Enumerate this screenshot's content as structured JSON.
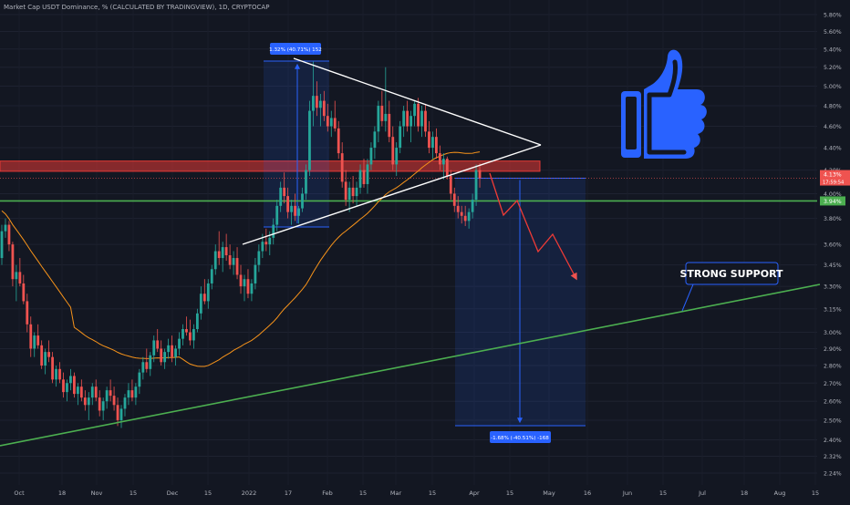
{
  "header": {
    "title": "Market Cap USDT Dominance, % (CALCULATED BY TRADINGVIEW), 1D, CRYPTOCAP"
  },
  "colors": {
    "background": "#131722",
    "up": "#26a69a",
    "down": "#ef5350",
    "ma": "#f7931a",
    "support": "#4caf50",
    "resistance": "#e53935",
    "thumb": "#2962ff",
    "measure": "#2962ff"
  },
  "chart_data": {
    "type": "candlestick",
    "y_scale": "log",
    "ylim": [
      2.2,
      5.95
    ],
    "y_ticks": [
      "5.80%",
      "5.60%",
      "5.40%",
      "5.20%",
      "5.00%",
      "4.80%",
      "4.60%",
      "4.40%",
      "4.20%",
      "4.00%",
      "3.80%",
      "3.60%",
      "3.45%",
      "3.30%",
      "3.15%",
      "3.00%",
      "2.90%",
      "2.80%",
      "2.70%",
      "2.60%",
      "2.50%",
      "2.40%",
      "2.32%",
      "2.24%"
    ],
    "x_ticks": [
      "Oct",
      "18",
      "Nov",
      "15",
      "Dec",
      "15",
      "2022",
      "17",
      "Feb",
      "15",
      "Mar",
      "15",
      "Apr",
      "15",
      "May",
      "16",
      "Jun",
      "15",
      "Jul",
      "18",
      "Aug",
      "15"
    ],
    "price_labels": {
      "current": "4.13%",
      "countdown": "17:59:54",
      "support_level": "3.94%"
    },
    "levels": {
      "resistance_zone": [
        4.19,
        4.28
      ],
      "horizontal_support": 3.94
    },
    "measure_up_label": "1.32% (40.71%) 152",
    "measure_down_label": "-1.68% (-40.51%) -168",
    "annotation": "STRONG SUPPORT",
    "series": [
      {
        "kind": "ohlc",
        "values": [
          [
            3.5,
            3.75,
            3.45,
            3.7
          ],
          [
            3.7,
            3.8,
            3.65,
            3.75
          ],
          [
            3.75,
            3.78,
            3.55,
            3.6
          ],
          [
            3.6,
            3.62,
            3.3,
            3.35
          ],
          [
            3.35,
            3.45,
            3.2,
            3.4
          ],
          [
            3.4,
            3.5,
            3.3,
            3.32
          ],
          [
            3.32,
            3.38,
            3.18,
            3.2
          ],
          [
            3.2,
            3.25,
            3.0,
            3.05
          ],
          [
            3.05,
            3.1,
            2.85,
            2.9
          ],
          [
            2.9,
            3.0,
            2.85,
            2.98
          ],
          [
            2.98,
            3.05,
            2.9,
            2.92
          ],
          [
            2.92,
            2.95,
            2.78,
            2.8
          ],
          [
            2.8,
            2.9,
            2.75,
            2.88
          ],
          [
            2.88,
            2.95,
            2.82,
            2.85
          ],
          [
            2.85,
            2.88,
            2.7,
            2.72
          ],
          [
            2.72,
            2.8,
            2.68,
            2.78
          ],
          [
            2.78,
            2.82,
            2.7,
            2.72
          ],
          [
            2.72,
            2.76,
            2.62,
            2.65
          ],
          [
            2.65,
            2.72,
            2.6,
            2.7
          ],
          [
            2.7,
            2.78,
            2.66,
            2.74
          ],
          [
            2.74,
            2.76,
            2.62,
            2.64
          ],
          [
            2.64,
            2.7,
            2.58,
            2.68
          ],
          [
            2.68,
            2.72,
            2.6,
            2.62
          ],
          [
            2.62,
            2.66,
            2.55,
            2.58
          ],
          [
            2.58,
            2.65,
            2.5,
            2.62
          ],
          [
            2.62,
            2.7,
            2.58,
            2.68
          ],
          [
            2.68,
            2.72,
            2.6,
            2.62
          ],
          [
            2.62,
            2.66,
            2.52,
            2.55
          ],
          [
            2.55,
            2.62,
            2.5,
            2.6
          ],
          [
            2.6,
            2.68,
            2.56,
            2.66
          ],
          [
            2.66,
            2.72,
            2.6,
            2.63
          ],
          [
            2.63,
            2.68,
            2.55,
            2.58
          ],
          [
            2.58,
            2.62,
            2.47,
            2.5
          ],
          [
            2.5,
            2.58,
            2.46,
            2.56
          ],
          [
            2.56,
            2.64,
            2.52,
            2.62
          ],
          [
            2.62,
            2.7,
            2.58,
            2.66
          ],
          [
            2.66,
            2.72,
            2.6,
            2.62
          ],
          [
            2.62,
            2.7,
            2.58,
            2.68
          ],
          [
            2.68,
            2.78,
            2.64,
            2.76
          ],
          [
            2.76,
            2.85,
            2.72,
            2.82
          ],
          [
            2.82,
            2.9,
            2.76,
            2.78
          ],
          [
            2.78,
            2.88,
            2.74,
            2.86
          ],
          [
            2.86,
            2.98,
            2.82,
            2.95
          ],
          [
            2.95,
            3.02,
            2.88,
            2.9
          ],
          [
            2.9,
            2.95,
            2.8,
            2.82
          ],
          [
            2.82,
            2.9,
            2.78,
            2.88
          ],
          [
            2.88,
            2.96,
            2.84,
            2.92
          ],
          [
            2.92,
            2.98,
            2.82,
            2.85
          ],
          [
            2.85,
            2.92,
            2.8,
            2.9
          ],
          [
            2.9,
            3.0,
            2.86,
            2.96
          ],
          [
            2.96,
            3.05,
            2.92,
            3.02
          ],
          [
            3.02,
            3.1,
            2.98,
            3.0
          ],
          [
            3.0,
            3.08,
            2.92,
            2.95
          ],
          [
            2.95,
            3.05,
            2.9,
            3.02
          ],
          [
            3.02,
            3.15,
            3.0,
            3.12
          ],
          [
            3.12,
            3.3,
            3.08,
            3.25
          ],
          [
            3.25,
            3.35,
            3.18,
            3.2
          ],
          [
            3.2,
            3.35,
            3.15,
            3.32
          ],
          [
            3.32,
            3.45,
            3.28,
            3.42
          ],
          [
            3.42,
            3.6,
            3.38,
            3.55
          ],
          [
            3.55,
            3.7,
            3.45,
            3.5
          ],
          [
            3.5,
            3.62,
            3.4,
            3.58
          ],
          [
            3.58,
            3.68,
            3.48,
            3.52
          ],
          [
            3.52,
            3.6,
            3.42,
            3.45
          ],
          [
            3.45,
            3.55,
            3.38,
            3.5
          ],
          [
            3.5,
            3.58,
            3.35,
            3.38
          ],
          [
            3.38,
            3.45,
            3.25,
            3.3
          ],
          [
            3.3,
            3.38,
            3.2,
            3.35
          ],
          [
            3.35,
            3.42,
            3.22,
            3.25
          ],
          [
            3.25,
            3.35,
            3.2,
            3.32
          ],
          [
            3.32,
            3.5,
            3.28,
            3.45
          ],
          [
            3.45,
            3.6,
            3.4,
            3.55
          ],
          [
            3.55,
            3.68,
            3.5,
            3.62
          ],
          [
            3.62,
            3.72,
            3.55,
            3.6
          ],
          [
            3.6,
            3.7,
            3.52,
            3.65
          ],
          [
            3.65,
            3.8,
            3.6,
            3.75
          ],
          [
            3.75,
            3.95,
            3.7,
            3.9
          ],
          [
            3.9,
            4.1,
            3.85,
            4.05
          ],
          [
            4.05,
            4.18,
            3.92,
            3.98
          ],
          [
            3.98,
            4.05,
            3.8,
            3.85
          ],
          [
            3.85,
            3.95,
            3.75,
            3.9
          ],
          [
            3.9,
            4.0,
            3.78,
            3.82
          ],
          [
            3.82,
            3.9,
            3.76,
            3.88
          ],
          [
            3.88,
            4.05,
            3.85,
            4.0
          ],
          [
            4.0,
            4.25,
            3.95,
            4.2
          ],
          [
            4.2,
            4.85,
            4.15,
            4.75
          ],
          [
            4.75,
            5.26,
            4.6,
            4.9
          ],
          [
            4.9,
            5.05,
            4.7,
            4.78
          ],
          [
            4.78,
            4.92,
            4.6,
            4.85
          ],
          [
            4.85,
            4.95,
            4.65,
            4.7
          ],
          [
            4.7,
            4.82,
            4.55,
            4.6
          ],
          [
            4.6,
            4.75,
            4.5,
            4.68
          ],
          [
            4.68,
            4.85,
            4.55,
            4.58
          ],
          [
            4.58,
            4.65,
            4.3,
            4.35
          ],
          [
            4.35,
            4.45,
            4.05,
            4.1
          ],
          [
            4.1,
            4.2,
            3.9,
            3.95
          ],
          [
            3.95,
            4.1,
            3.85,
            4.05
          ],
          [
            4.05,
            4.15,
            3.92,
            3.98
          ],
          [
            3.98,
            4.1,
            3.9,
            4.05
          ],
          [
            4.05,
            4.25,
            4.0,
            4.2
          ],
          [
            4.2,
            4.3,
            4.05,
            4.08
          ],
          [
            4.08,
            4.3,
            4.0,
            4.25
          ],
          [
            4.25,
            4.45,
            4.2,
            4.4
          ],
          [
            4.4,
            4.6,
            4.3,
            4.55
          ],
          [
            4.55,
            4.85,
            4.45,
            4.8
          ],
          [
            4.8,
            4.95,
            4.6,
            4.65
          ],
          [
            4.65,
            5.2,
            4.55,
            4.72
          ],
          [
            4.72,
            4.85,
            4.45,
            4.5
          ],
          [
            4.5,
            4.6,
            4.2,
            4.25
          ],
          [
            4.25,
            4.45,
            4.15,
            4.4
          ],
          [
            4.4,
            4.65,
            4.35,
            4.6
          ],
          [
            4.6,
            4.8,
            4.5,
            4.75
          ],
          [
            4.75,
            4.85,
            4.55,
            4.6
          ],
          [
            4.6,
            4.75,
            4.45,
            4.7
          ],
          [
            4.7,
            4.85,
            4.6,
            4.82
          ],
          [
            4.82,
            4.88,
            4.55,
            4.6
          ],
          [
            4.6,
            4.8,
            4.5,
            4.75
          ],
          [
            4.75,
            4.82,
            4.5,
            4.55
          ],
          [
            4.55,
            4.65,
            4.35,
            4.4
          ],
          [
            4.4,
            4.55,
            4.3,
            4.5
          ],
          [
            4.5,
            4.58,
            4.3,
            4.35
          ],
          [
            4.35,
            4.42,
            4.2,
            4.25
          ],
          [
            4.25,
            4.35,
            4.12,
            4.3
          ],
          [
            4.3,
            4.32,
            4.12,
            4.15
          ],
          [
            4.15,
            4.2,
            3.95,
            4.0
          ],
          [
            4.0,
            4.05,
            3.85,
            3.9
          ],
          [
            3.9,
            3.98,
            3.8,
            3.85
          ],
          [
            3.85,
            3.9,
            3.76,
            3.82
          ],
          [
            3.82,
            3.9,
            3.74,
            3.78
          ],
          [
            3.78,
            3.88,
            3.72,
            3.85
          ],
          [
            3.85,
            4.0,
            3.8,
            3.95
          ],
          [
            3.95,
            4.25,
            3.9,
            4.2
          ],
          [
            4.2,
            4.26,
            4.05,
            4.13
          ]
        ]
      },
      {
        "kind": "ma",
        "name": ""
      }
    ]
  }
}
